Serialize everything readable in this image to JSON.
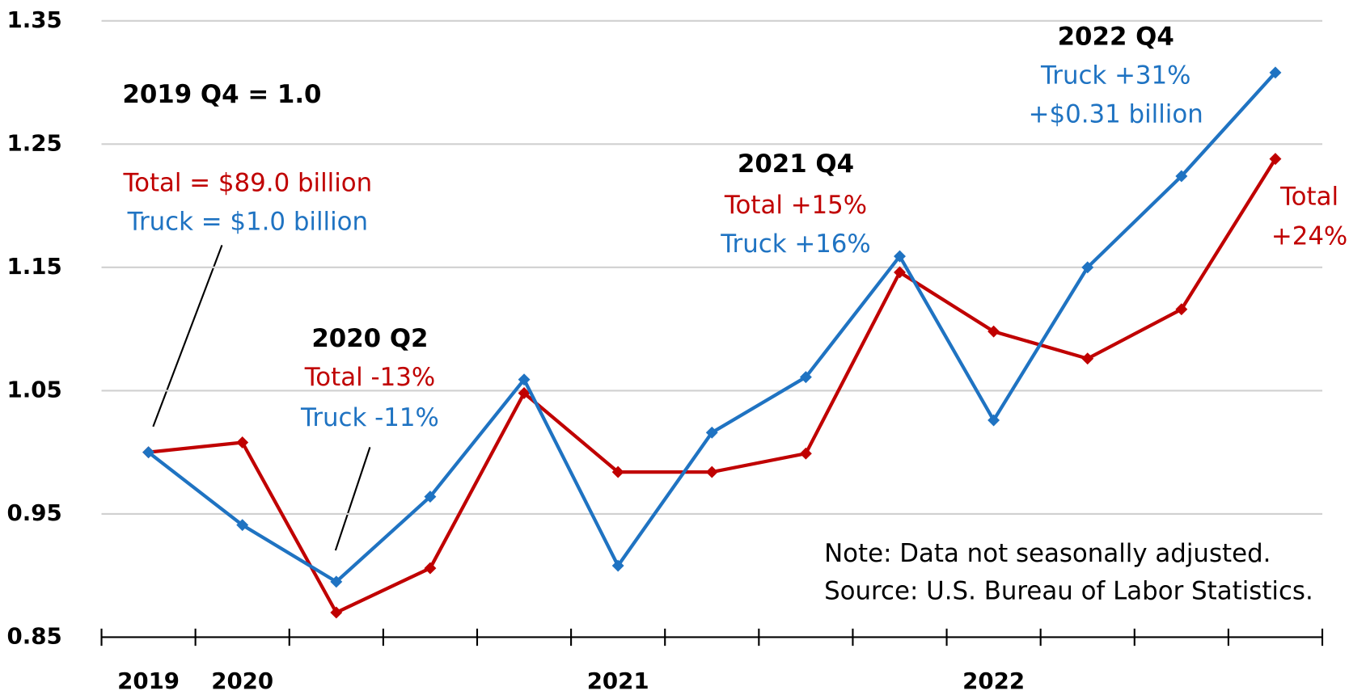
{
  "chart_data": {
    "type": "line",
    "categories": [
      "2019",
      "2020",
      null,
      null,
      null,
      "2021",
      null,
      null,
      null,
      "2022",
      null,
      null,
      null
    ],
    "series": [
      {
        "color": "#c00000",
        "values": [
          1.0,
          1.008,
          0.87,
          0.906,
          1.048,
          0.984,
          0.984,
          0.999,
          1.146,
          1.098,
          1.076,
          1.116,
          1.238
        ]
      },
      {
        "color": "#1f73c2",
        "values": [
          1.0,
          0.941,
          0.895,
          0.964,
          1.059,
          0.908,
          1.016,
          1.061,
          1.159,
          1.026,
          1.15,
          1.224,
          1.308
        ]
      }
    ],
    "ylim": [
      0.85,
      1.35
    ],
    "yticks": [
      0.85,
      0.95,
      1.05,
      1.15,
      1.25,
      1.35
    ],
    "grid": true,
    "annotations": [
      {
        "text": "2019 Q4 = 1.0",
        "color": "#000000"
      },
      {
        "text": "Total = $89.0 billion",
        "color": "#c00000"
      },
      {
        "text": "Truck =  $1.0 billion",
        "color": "#1f73c2"
      },
      {
        "text": "2020 Q2",
        "color": "#000000"
      },
      {
        "text": "Total -13%",
        "color": "#c00000"
      },
      {
        "text": "Truck -11%",
        "color": "#1f73c2"
      },
      {
        "text": "2021 Q4",
        "color": "#000000"
      },
      {
        "text": "Total +15%",
        "color": "#c00000"
      },
      {
        "text": "Truck +16%",
        "color": "#1f73c2"
      },
      {
        "text": "2022 Q4",
        "color": "#000000"
      },
      {
        "text": "Truck +31%",
        "color": "#1f73c2"
      },
      {
        "text": "+$0.31 billion",
        "color": "#1f73c2"
      },
      {
        "text": "Total",
        "color": "#c00000"
      },
      {
        "text": "+24%",
        "color": "#c00000"
      },
      {
        "text": "Note: Data not seasonally adjusted.",
        "color": "#000000"
      },
      {
        "text": "Source: U.S. Bureau of Labor Statistics.",
        "color": "#000000"
      }
    ]
  }
}
